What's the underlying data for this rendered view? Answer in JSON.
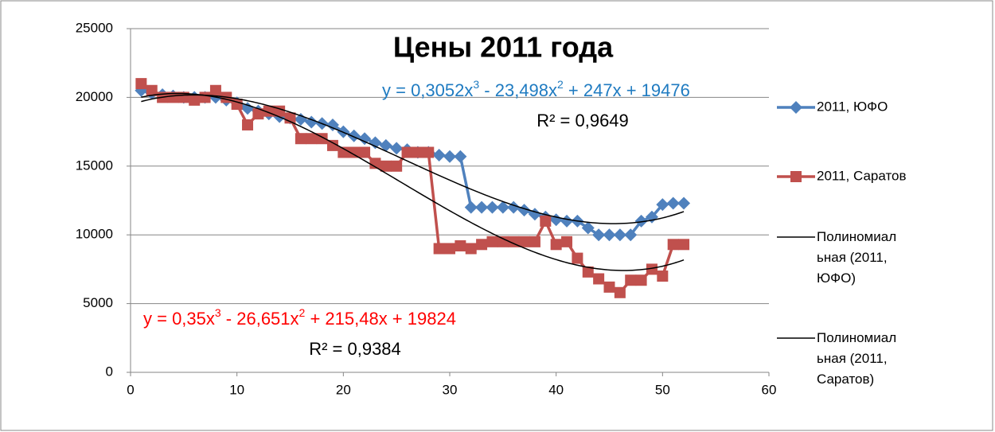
{
  "chart_data": {
    "type": "line",
    "title": "Цены 2011 года",
    "xlim": [
      0,
      60
    ],
    "xticks": [
      0,
      10,
      20,
      30,
      40,
      50,
      60
    ],
    "ylim": [
      0,
      25000
    ],
    "yticks": [
      0,
      5000,
      10000,
      15000,
      20000,
      25000
    ],
    "grid": true,
    "legend": "right",
    "x": [
      1,
      2,
      3,
      4,
      5,
      6,
      7,
      8,
      9,
      10,
      11,
      12,
      13,
      14,
      15,
      16,
      17,
      18,
      19,
      20,
      21,
      22,
      23,
      24,
      25,
      26,
      27,
      28,
      29,
      30,
      31,
      32,
      33,
      34,
      35,
      36,
      37,
      38,
      39,
      40,
      41,
      42,
      43,
      44,
      45,
      46,
      47,
      48,
      49,
      50,
      51,
      52
    ],
    "series": [
      {
        "name": "2011, ЮФО",
        "color": "#4f81bd",
        "marker": "diamond",
        "values": [
          20500,
          20300,
          20200,
          20100,
          20000,
          20000,
          20000,
          20000,
          19800,
          19600,
          19200,
          19000,
          18800,
          18600,
          18500,
          18400,
          18200,
          18100,
          18000,
          17500,
          17200,
          17000,
          16700,
          16500,
          16300,
          16200,
          16000,
          16000,
          15800,
          15700,
          15700,
          12000,
          12000,
          12000,
          12000,
          12000,
          11800,
          11500,
          11300,
          11100,
          11000,
          11000,
          10500,
          10000,
          10000,
          10000,
          10000,
          11000,
          11300,
          12200,
          12300,
          12300
        ],
        "trendline": {
          "name": "Полиномиальная (2011, ЮФО)",
          "color": "#000000",
          "coefficients": [
            0.3052,
            -23.498,
            247,
            19476
          ],
          "equation": [
            "y = 0,3052x",
            "3",
            " - 23,498x",
            "2",
            " + 247x + 19476"
          ],
          "r2": "R² = 0,9649",
          "label_color": "#1f7bc1"
        }
      },
      {
        "name": "2011, Саратов",
        "color": "#c0504d",
        "marker": "square",
        "values": [
          21000,
          20500,
          20000,
          20000,
          20000,
          19800,
          20000,
          20500,
          20000,
          19500,
          18000,
          18800,
          19000,
          19000,
          18500,
          17000,
          17000,
          17000,
          16500,
          16000,
          16000,
          16000,
          15200,
          15000,
          15000,
          16000,
          16000,
          16000,
          9000,
          9000,
          9200,
          9000,
          9300,
          9500,
          9500,
          9500,
          9500,
          9500,
          11000,
          9300,
          9500,
          8300,
          7300,
          6800,
          6200,
          5800,
          6700,
          6700,
          7500,
          7000,
          9300,
          9300
        ],
        "trendline": {
          "name": "Полиномиальная (2011, Саратов)",
          "color": "#000000",
          "coefficients": [
            0.35,
            -26.651,
            215.48,
            19824
          ],
          "equation": [
            "y = 0,35x",
            "3",
            " - 26,651x",
            "2",
            " + 215,48x + 19824"
          ],
          "r2": "R² = 0,9384",
          "label_color": "#ff0000"
        }
      }
    ]
  }
}
